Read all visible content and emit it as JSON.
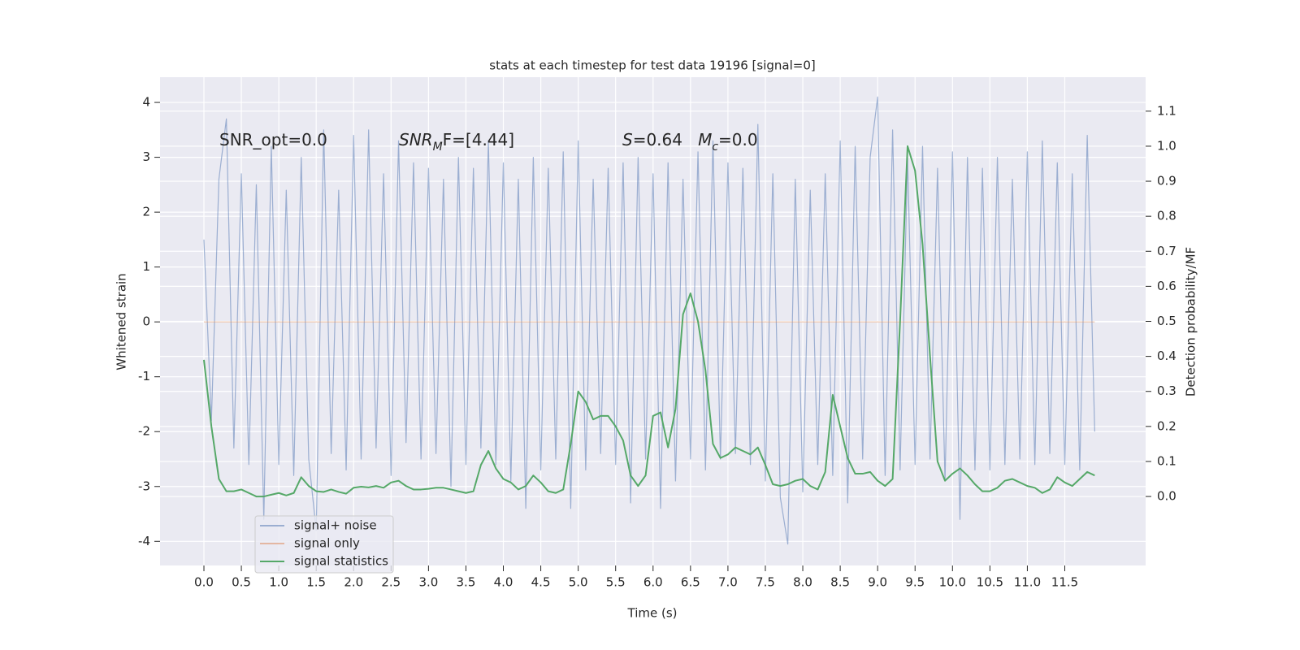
{
  "chart_data": {
    "type": "line",
    "title": "stats at each timestep for test data 19196 [signal=0]",
    "xlabel": "Time (s)",
    "ylabel": "Whitened strain",
    "y2label": "Detection probability/MF",
    "annotations": [
      [
        {
          "text": "SNR_opt=0.0"
        }
      ],
      [
        {
          "text": "SNR",
          "italic": true
        },
        {
          "text": "M",
          "italic": true,
          "sub": true
        },
        {
          "text": "F=[4.44]"
        }
      ],
      [
        {
          "text": "S",
          "italic": true
        },
        {
          "text": "=0.64   "
        },
        {
          "text": "M",
          "italic": true
        },
        {
          "text": "c",
          "italic": true,
          "sub": true
        },
        {
          "text": "=0.0"
        }
      ]
    ],
    "x": [
      0.0,
      0.1,
      0.2,
      0.3,
      0.4,
      0.5,
      0.6,
      0.7,
      0.8,
      0.9,
      1.0,
      1.1,
      1.2,
      1.3,
      1.4,
      1.5,
      1.6,
      1.7,
      1.8,
      1.9,
      2.0,
      2.1,
      2.2,
      2.3,
      2.4,
      2.5,
      2.6,
      2.7,
      2.8,
      2.9,
      3.0,
      3.1,
      3.2,
      3.3,
      3.4,
      3.5,
      3.6,
      3.7,
      3.8,
      3.9,
      4.0,
      4.1,
      4.2,
      4.3,
      4.4,
      4.5,
      4.6,
      4.7,
      4.8,
      4.9,
      5.0,
      5.1,
      5.2,
      5.3,
      5.4,
      5.5,
      5.6,
      5.7,
      5.8,
      5.9,
      6.0,
      6.1,
      6.2,
      6.3,
      6.4,
      6.5,
      6.6,
      6.7,
      6.8,
      6.9,
      7.0,
      7.1,
      7.2,
      7.3,
      7.4,
      7.5,
      7.6,
      7.7,
      7.8,
      7.9,
      8.0,
      8.1,
      8.2,
      8.3,
      8.4,
      8.5,
      8.6,
      8.7,
      8.8,
      8.9,
      9.0,
      9.1,
      9.2,
      9.3,
      9.4,
      9.5,
      9.6,
      9.7,
      9.8,
      9.9,
      10.0,
      10.1,
      10.2,
      10.3,
      10.4,
      10.5,
      10.6,
      10.7,
      10.8,
      10.9,
      11.0,
      11.1,
      11.2,
      11.3,
      11.4,
      11.5,
      11.6,
      11.7,
      11.8,
      11.9
    ],
    "series": [
      {
        "name": "signal+ noise",
        "color": "#4c72b0",
        "opacity": 0.5,
        "values": [
          1.5,
          -1.8,
          2.6,
          3.7,
          -2.3,
          2.7,
          -2.6,
          2.5,
          -3.6,
          3.2,
          -2.6,
          2.4,
          -2.8,
          3.0,
          -2.5,
          -3.8,
          3.5,
          -2.4,
          2.4,
          -2.7,
          3.4,
          -2.5,
          3.5,
          -2.3,
          2.7,
          -2.8,
          3.3,
          -2.2,
          2.9,
          -2.5,
          2.8,
          -2.4,
          2.6,
          -3.0,
          3.0,
          -2.6,
          2.8,
          -2.3,
          3.3,
          -2.6,
          2.9,
          -2.9,
          2.6,
          -3.4,
          3.0,
          -2.7,
          2.8,
          -2.5,
          3.1,
          -3.4,
          3.3,
          -2.7,
          2.6,
          -2.4,
          2.8,
          -2.6,
          2.9,
          -3.3,
          3.0,
          -2.5,
          2.7,
          -3.4,
          2.9,
          -2.9,
          2.6,
          -2.5,
          3.1,
          -2.7,
          3.3,
          -2.5,
          2.9,
          -2.4,
          2.8,
          -2.6,
          3.6,
          -2.9,
          2.7,
          -3.2,
          -4.05,
          2.6,
          -3.1,
          2.4,
          -2.6,
          2.7,
          -2.8,
          3.3,
          -3.3,
          3.2,
          -2.5,
          3.0,
          4.1,
          -2.8,
          3.5,
          -2.7,
          3.0,
          -2.6,
          3.2,
          -2.5,
          2.8,
          -2.9,
          3.1,
          -3.6,
          3.0,
          -2.7,
          2.8,
          -2.7,
          3.0,
          -2.6,
          2.6,
          -2.5,
          3.1,
          -2.6,
          3.3,
          -2.4,
          2.9,
          -2.6,
          2.7,
          -2.7,
          3.4,
          -2.0
        ]
      },
      {
        "name": "signal only",
        "color": "#dd8452",
        "opacity": 0.5,
        "x": [
          0.0,
          11.9
        ],
        "values": [
          0,
          0
        ]
      },
      {
        "name": "signal statistics",
        "color": "#55a868",
        "opacity": 1,
        "axis": "y2",
        "values": [
          0.39,
          0.2,
          0.05,
          0.015,
          0.015,
          0.02,
          0.01,
          0.0,
          0.0,
          0.005,
          0.01,
          0.003,
          0.01,
          0.055,
          0.03,
          0.015,
          0.013,
          0.02,
          0.013,
          0.008,
          0.025,
          0.028,
          0.026,
          0.03,
          0.025,
          0.04,
          0.045,
          0.03,
          0.02,
          0.02,
          0.022,
          0.025,
          0.025,
          0.02,
          0.015,
          0.01,
          0.015,
          0.09,
          0.13,
          0.08,
          0.05,
          0.04,
          0.02,
          0.03,
          0.06,
          0.04,
          0.015,
          0.01,
          0.02,
          0.15,
          0.3,
          0.27,
          0.22,
          0.23,
          0.23,
          0.2,
          0.16,
          0.06,
          0.03,
          0.06,
          0.23,
          0.24,
          0.14,
          0.25,
          0.52,
          0.58,
          0.5,
          0.36,
          0.15,
          0.11,
          0.12,
          0.14,
          0.13,
          0.12,
          0.14,
          0.09,
          0.035,
          0.03,
          0.035,
          0.045,
          0.05,
          0.03,
          0.02,
          0.07,
          0.29,
          0.2,
          0.11,
          0.065,
          0.065,
          0.07,
          0.045,
          0.03,
          0.05,
          0.5,
          1.0,
          0.93,
          0.72,
          0.4,
          0.1,
          0.045,
          0.065,
          0.08,
          0.06,
          0.035,
          0.015,
          0.015,
          0.025,
          0.045,
          0.05,
          0.04,
          0.03,
          0.025,
          0.01,
          0.02,
          0.055,
          0.04,
          0.03,
          0.05,
          0.07,
          0.06
        ]
      }
    ],
    "xlim": [
      -0.586,
      12.58
    ],
    "xticks": [
      {
        "value": 0,
        "label": "0.0"
      },
      0.5,
      {
        "value": 1,
        "label": "1.0"
      },
      1.5,
      {
        "value": 2,
        "label": "2.0"
      },
      2.5,
      {
        "value": 3,
        "label": "3.0"
      },
      3.5,
      {
        "value": 4,
        "label": "4.0"
      },
      4.5,
      {
        "value": 5,
        "label": "5.0"
      },
      5.5,
      {
        "value": 6,
        "label": "6.0"
      },
      6.5,
      {
        "value": 7,
        "label": "7.0"
      },
      7.5,
      {
        "value": 8,
        "label": "8.0"
      },
      8.5,
      {
        "value": 9,
        "label": "9.0"
      },
      9.5,
      {
        "value": 10,
        "label": "10.0"
      },
      10.5,
      {
        "value": 11,
        "label": "11.0"
      },
      11.5
    ],
    "ylim": [
      -4.44,
      4.46
    ],
    "yticks": [
      -4,
      -3,
      -2,
      -1,
      0,
      1,
      2,
      3,
      4
    ],
    "y2lim": [
      -0.197,
      1.197
    ],
    "y2ticks": [
      {
        "value": 0,
        "label": "0.0"
      },
      0.1,
      0.2,
      0.3,
      0.4,
      0.5,
      0.6,
      0.7,
      0.8,
      0.9,
      {
        "value": 1,
        "label": "1.0"
      },
      1.1
    ],
    "grid": true,
    "legend": "lower left"
  }
}
